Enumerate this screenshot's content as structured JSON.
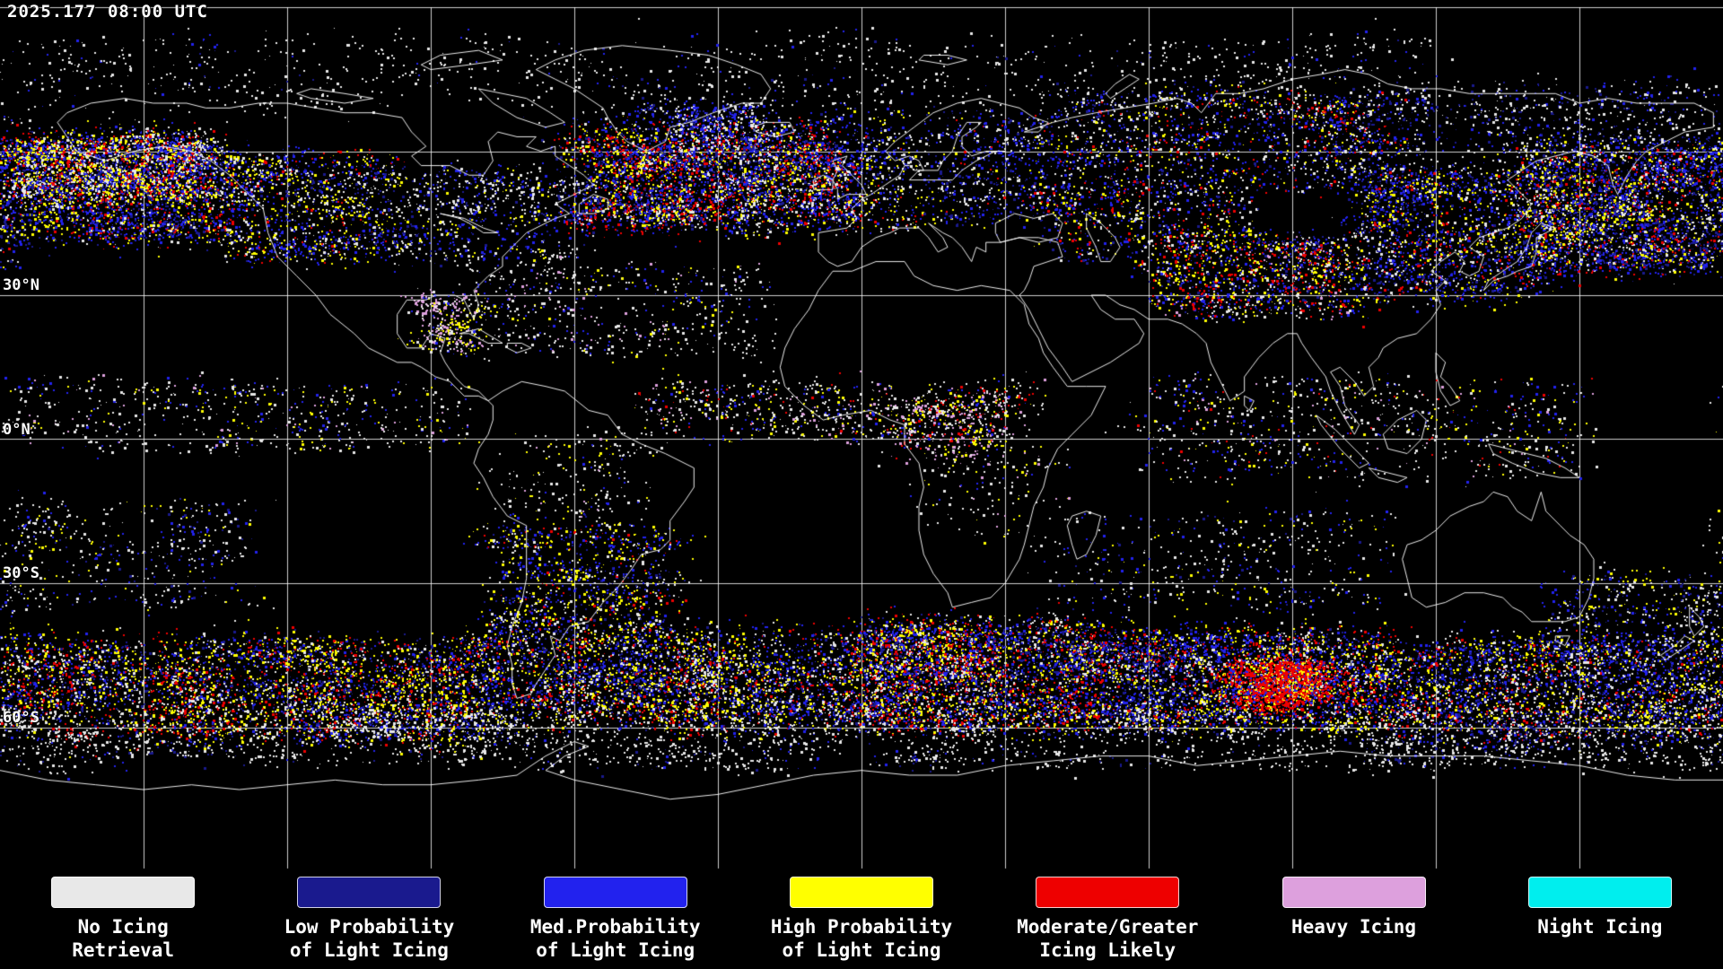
{
  "header": {
    "timestamp": "2025.177 08:00 UTC"
  },
  "map": {
    "projection": {
      "lon_min": -180,
      "lon_max": 180,
      "lat_min": -90,
      "lat_max": 90,
      "grid_step_deg": 30
    },
    "lat_labels": [
      {
        "text": "30°N",
        "lat": 30
      },
      {
        "text": "0°N",
        "lat": 0
      },
      {
        "text": "30°S",
        "lat": -30
      },
      {
        "text": "60°S",
        "lat": -60
      }
    ],
    "colors": {
      "background": "#000000",
      "grid": "#ffffff",
      "coastline": "#ffffff",
      "white": "#e8e8e8",
      "navy": "#1a1a8e",
      "blue": "#2222ee",
      "yellow": "#ffff00",
      "red": "#ee0000",
      "pink": "#dda0dd",
      "cyan": "#00eeee"
    },
    "regions": [
      {
        "name": "arctic-sparse",
        "lon": [
          -180,
          120
        ],
        "lat": [
          68,
          84
        ],
        "clusters": 380,
        "dots": 3,
        "spread": 1.6,
        "palette": {
          "white": 0.85,
          "blue": 0.1,
          "navy": 0.05
        }
      },
      {
        "name": "north-pacific-west",
        "lon": [
          138,
          180
        ],
        "lat": [
          36,
          62
        ],
        "clusters": 230,
        "dots": 15,
        "spread": 1.6,
        "palette": {
          "blue": 0.34,
          "navy": 0.2,
          "white": 0.17,
          "yellow": 0.16,
          "red": 0.13
        }
      },
      {
        "name": "north-pacific-east",
        "lon": [
          -180,
          -134
        ],
        "lat": [
          42,
          62
        ],
        "clusters": 210,
        "dots": 14,
        "spread": 1.6,
        "palette": {
          "blue": 0.32,
          "navy": 0.22,
          "white": 0.2,
          "yellow": 0.16,
          "red": 0.1
        }
      },
      {
        "name": "bering-alaska",
        "lon": [
          -176,
          -140
        ],
        "lat": [
          50,
          64
        ],
        "clusters": 150,
        "dots": 11,
        "spread": 1.4,
        "palette": {
          "yellow": 0.28,
          "red": 0.17,
          "blue": 0.23,
          "white": 0.2,
          "navy": 0.12
        }
      },
      {
        "name": "na-west",
        "lon": [
          -135,
          -100
        ],
        "lat": [
          38,
          60
        ],
        "clusters": 170,
        "dots": 8,
        "spread": 1.3,
        "palette": {
          "white": 0.3,
          "blue": 0.26,
          "yellow": 0.24,
          "red": 0.1,
          "navy": 0.1
        }
      },
      {
        "name": "na-east",
        "lon": [
          -100,
          -60
        ],
        "lat": [
          38,
          56
        ],
        "clusters": 130,
        "dots": 6,
        "spread": 1.2,
        "palette": {
          "white": 0.44,
          "blue": 0.3,
          "navy": 0.15,
          "yellow": 0.11
        }
      },
      {
        "name": "north-atlantic-storm",
        "lon": [
          -60,
          -4
        ],
        "lat": [
          44,
          65
        ],
        "clusters": 270,
        "dots": 15,
        "spread": 1.6,
        "palette": {
          "blue": 0.3,
          "red": 0.2,
          "yellow": 0.18,
          "white": 0.16,
          "navy": 0.16
        }
      },
      {
        "name": "greenland-southeast",
        "lon": [
          -48,
          -20
        ],
        "lat": [
          58,
          70
        ],
        "clusters": 90,
        "dots": 8,
        "spread": 1.2,
        "palette": {
          "blue": 0.4,
          "white": 0.3,
          "navy": 0.2,
          "red": 0.1
        }
      },
      {
        "name": "europe",
        "lon": [
          -10,
          45
        ],
        "lat": [
          45,
          68
        ],
        "clusters": 190,
        "dots": 7,
        "spread": 1.4,
        "palette": {
          "blue": 0.35,
          "white": 0.3,
          "navy": 0.2,
          "yellow": 0.1,
          "red": 0.05
        }
      },
      {
        "name": "siberia",
        "lon": [
          45,
          115
        ],
        "lat": [
          52,
          72
        ],
        "clusters": 200,
        "dots": 8,
        "spread": 1.5,
        "palette": {
          "blue": 0.3,
          "white": 0.28,
          "navy": 0.18,
          "yellow": 0.14,
          "red": 0.1
        }
      },
      {
        "name": "northeast-siberia",
        "lon": [
          115,
          178
        ],
        "lat": [
          60,
          74
        ],
        "clusters": 120,
        "dots": 5,
        "spread": 1.5,
        "palette": {
          "white": 0.5,
          "blue": 0.3,
          "navy": 0.2
        }
      },
      {
        "name": "east-asia",
        "lon": [
          105,
          145
        ],
        "lat": [
          30,
          56
        ],
        "clusters": 190,
        "dots": 10,
        "spread": 1.5,
        "palette": {
          "blue": 0.33,
          "navy": 0.18,
          "white": 0.18,
          "yellow": 0.18,
          "red": 0.13
        }
      },
      {
        "name": "central-asia-tibet",
        "lon": [
          62,
          104
        ],
        "lat": [
          26,
          42
        ],
        "clusters": 150,
        "dots": 9,
        "spread": 1.3,
        "palette": {
          "yellow": 0.25,
          "red": 0.2,
          "blue": 0.26,
          "white": 0.19,
          "navy": 0.08,
          "pink": 0.02
        }
      },
      {
        "name": "caspian-kazakh",
        "lon": [
          40,
          80
        ],
        "lat": [
          38,
          54
        ],
        "clusters": 110,
        "dots": 6,
        "spread": 1.4,
        "palette": {
          "blue": 0.3,
          "white": 0.25,
          "yellow": 0.2,
          "red": 0.14,
          "navy": 0.11
        }
      },
      {
        "name": "subtropical-atlantic",
        "lon": [
          -80,
          -20
        ],
        "lat": [
          18,
          36
        ],
        "clusters": 140,
        "dots": 4,
        "spread": 1.4,
        "palette": {
          "white": 0.6,
          "blue": 0.2,
          "yellow": 0.12,
          "pink": 0.08
        }
      },
      {
        "name": "gulf-caribbean-pink",
        "lon": [
          -92,
          -80
        ],
        "lat": [
          18,
          30
        ],
        "clusters": 45,
        "dots": 8,
        "spread": 1.0,
        "palette": {
          "pink": 0.45,
          "white": 0.25,
          "yellow": 0.2,
          "blue": 0.1
        }
      },
      {
        "name": "itcz-atlantic-africa",
        "lon": [
          -45,
          35
        ],
        "lat": [
          0,
          12
        ],
        "clusters": 170,
        "dots": 5,
        "spread": 1.2,
        "palette": {
          "white": 0.45,
          "yellow": 0.2,
          "blue": 0.15,
          "pink": 0.1,
          "red": 0.1
        }
      },
      {
        "name": "central-africa-pink",
        "lon": [
          8,
          30
        ],
        "lat": [
          -4,
          9
        ],
        "clusters": 55,
        "dots": 6,
        "spread": 1.0,
        "palette": {
          "pink": 0.4,
          "white": 0.3,
          "yellow": 0.2,
          "red": 0.1
        }
      },
      {
        "name": "east-pacific-itcz",
        "lon": [
          -180,
          -82
        ],
        "lat": [
          -2,
          12
        ],
        "clusters": 150,
        "dots": 4,
        "spread": 1.4,
        "palette": {
          "white": 0.55,
          "yellow": 0.2,
          "blue": 0.15,
          "pink": 0.1
        }
      },
      {
        "name": "amazon",
        "lon": [
          -76,
          -45
        ],
        "lat": [
          -16,
          2
        ],
        "clusters": 70,
        "dots": 3,
        "spread": 1.3,
        "palette": {
          "white": 0.6,
          "yellow": 0.2,
          "pink": 0.1,
          "blue": 0.1
        }
      },
      {
        "name": "indian-ocean-itcz",
        "lon": [
          60,
          150
        ],
        "lat": [
          -8,
          12
        ],
        "clusters": 200,
        "dots": 4,
        "spread": 1.5,
        "palette": {
          "white": 0.5,
          "yellow": 0.18,
          "blue": 0.18,
          "pink": 0.07,
          "red": 0.07
        }
      },
      {
        "name": "south-indian-subtropics",
        "lon": [
          40,
          110
        ],
        "lat": [
          -35,
          -15
        ],
        "clusters": 120,
        "dots": 4,
        "spread": 1.5,
        "palette": {
          "white": 0.5,
          "blue": 0.25,
          "yellow": 0.15,
          "navy": 0.1
        }
      },
      {
        "name": "spcz",
        "lon": [
          -180,
          -128
        ],
        "lat": [
          -35,
          -12
        ],
        "clusters": 120,
        "dots": 4,
        "spread": 1.5,
        "palette": {
          "white": 0.55,
          "blue": 0.2,
          "yellow": 0.15,
          "navy": 0.1
        }
      },
      {
        "name": "south-america-subtropics",
        "lon": [
          -76,
          -40
        ],
        "lat": [
          -40,
          -18
        ],
        "clusters": 160,
        "dots": 7,
        "spread": 1.4,
        "palette": {
          "blue": 0.3,
          "yellow": 0.25,
          "white": 0.25,
          "red": 0.1,
          "navy": 0.1
        }
      },
      {
        "name": "southern-ocean-sepacific",
        "lon": [
          -180,
          -74
        ],
        "lat": [
          -62,
          -42
        ],
        "clusters": 330,
        "dots": 15,
        "spread": 1.8,
        "palette": {
          "yellow": 0.26,
          "blue": 0.24,
          "red": 0.16,
          "white": 0.2,
          "navy": 0.14
        }
      },
      {
        "name": "southern-ocean-satlantic",
        "lon": [
          -74,
          0
        ],
        "lat": [
          -60,
          -40
        ],
        "clusters": 270,
        "dots": 13,
        "spread": 1.7,
        "palette": {
          "blue": 0.28,
          "yellow": 0.24,
          "white": 0.2,
          "red": 0.14,
          "navy": 0.14
        }
      },
      {
        "name": "southern-ocean-safrica",
        "lon": [
          0,
          45
        ],
        "lat": [
          -60,
          -38
        ],
        "clusters": 250,
        "dots": 15,
        "spread": 1.6,
        "palette": {
          "red": 0.24,
          "yellow": 0.22,
          "blue": 0.26,
          "white": 0.15,
          "navy": 0.13
        }
      },
      {
        "name": "southern-ocean-sindian",
        "lon": [
          45,
          115
        ],
        "lat": [
          -60,
          -40
        ],
        "clusters": 290,
        "dots": 15,
        "spread": 1.7,
        "palette": {
          "blue": 0.34,
          "red": 0.17,
          "yellow": 0.16,
          "white": 0.18,
          "navy": 0.15
        }
      },
      {
        "name": "south-indian-red-blob",
        "lon": [
          78,
          98
        ],
        "lat": [
          -56,
          -47
        ],
        "clusters": 60,
        "dots": 22,
        "spread": 1.2,
        "palette": {
          "red": 0.7,
          "yellow": 0.15,
          "blue": 0.15
        }
      },
      {
        "name": "southern-ocean-australia",
        "lon": [
          115,
          180
        ],
        "lat": [
          -62,
          -42
        ],
        "clusters": 270,
        "dots": 12,
        "spread": 1.7,
        "palette": {
          "blue": 0.3,
          "white": 0.25,
          "navy": 0.18,
          "yellow": 0.17,
          "red": 0.1
        }
      },
      {
        "name": "tasman-nz",
        "lon": [
          145,
          180
        ],
        "lat": [
          -45,
          -28
        ],
        "clusters": 100,
        "dots": 5,
        "spread": 1.4,
        "palette": {
          "white": 0.4,
          "blue": 0.3,
          "yellow": 0.15,
          "navy": 0.15
        }
      },
      {
        "name": "sea-ice-edge",
        "lon": [
          -180,
          180
        ],
        "lat": [
          -68,
          -56
        ],
        "clusters": 520,
        "dots": 5,
        "spread": 1.2,
        "palette": {
          "white": 0.85,
          "blue": 0.08,
          "navy": 0.07
        }
      },
      {
        "name": "africa-interior-sparse",
        "lon": [
          12,
          40
        ],
        "lat": [
          -20,
          -2
        ],
        "clusters": 50,
        "dots": 3,
        "spread": 1.3,
        "palette": {
          "white": 0.6,
          "yellow": 0.2,
          "blue": 0.1,
          "pink": 0.1
        }
      }
    ]
  },
  "legend": {
    "items": [
      {
        "id": "no-icing",
        "color": "#e8e8e8",
        "lines": [
          "No Icing",
          "Retrieval"
        ]
      },
      {
        "id": "low-prob",
        "color": "#1a1a8e",
        "lines": [
          "Low Probability",
          "of Light Icing"
        ]
      },
      {
        "id": "med-prob",
        "color": "#2222ee",
        "lines": [
          "Med.Probability",
          "of Light Icing"
        ]
      },
      {
        "id": "high-prob",
        "color": "#ffff00",
        "lines": [
          "High Probability",
          "of Light Icing"
        ]
      },
      {
        "id": "mod-greater",
        "color": "#ee0000",
        "lines": [
          "Moderate/Greater",
          "Icing Likely"
        ]
      },
      {
        "id": "heavy",
        "color": "#dda0dd",
        "lines": [
          "Heavy Icing",
          ""
        ]
      },
      {
        "id": "night",
        "color": "#00eeee",
        "lines": [
          "Night Icing",
          ""
        ]
      }
    ]
  }
}
